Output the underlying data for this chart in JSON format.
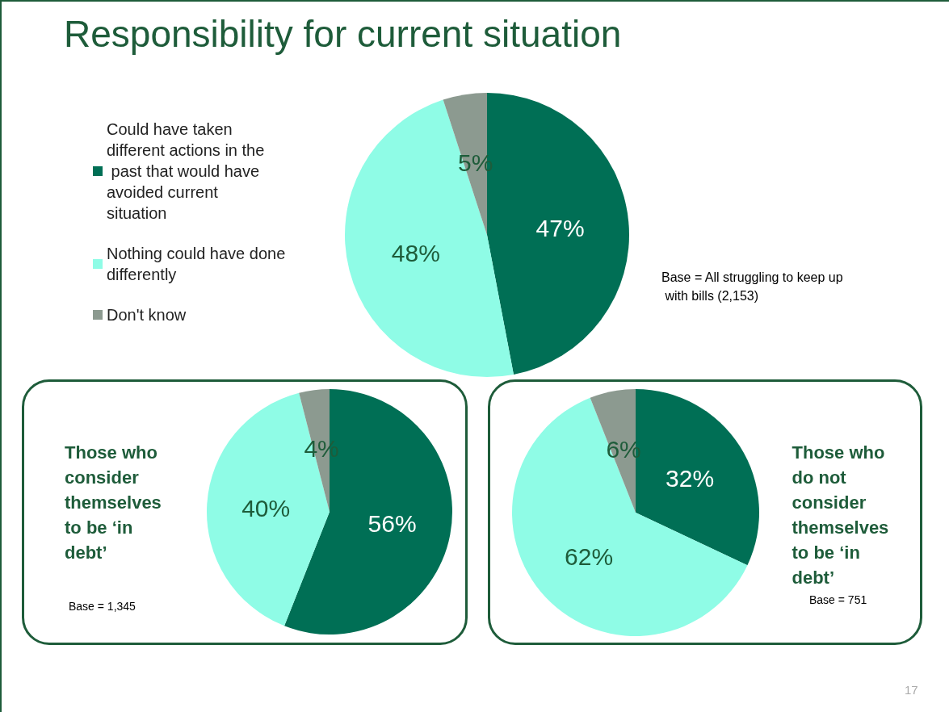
{
  "chart_data": [
    {
      "type": "pie",
      "title": "Responsibility for current situation",
      "categories": [
        "Could have taken different actions in the past that would have avoided current situation",
        "Nothing could have done differently",
        "Don't know"
      ],
      "values": [
        47,
        48,
        5
      ],
      "value_labels": [
        "47%",
        "48%",
        "5%"
      ],
      "colors": [
        "#006f55",
        "#8ffce6",
        "#8c9a90"
      ],
      "legend": "left",
      "annotations": [
        "Base = All struggling to keep up with bills (2,153)",
        "17"
      ]
    },
    {
      "type": "pie",
      "title": "Those who consider themselves to be ‘in debt’",
      "categories": [
        null,
        null,
        null
      ],
      "values": [
        56,
        40,
        4
      ],
      "value_labels": [
        "56%",
        "40%",
        "4%"
      ],
      "colors": [
        "#006f55",
        "#8ffce6",
        "#8c9a90"
      ],
      "annotations": [
        "Base = 1,345"
      ]
    },
    {
      "type": "pie",
      "title": "Those who do not consider themselves to be ‘in debt’",
      "categories": [
        null,
        null,
        null
      ],
      "values": [
        32,
        62,
        6
      ],
      "value_labels": [
        "32%",
        "62%",
        "6%"
      ],
      "colors": [
        "#006f55",
        "#8ffce6",
        "#8c9a90"
      ],
      "annotations": [
        "Base = 751"
      ]
    }
  ]
}
